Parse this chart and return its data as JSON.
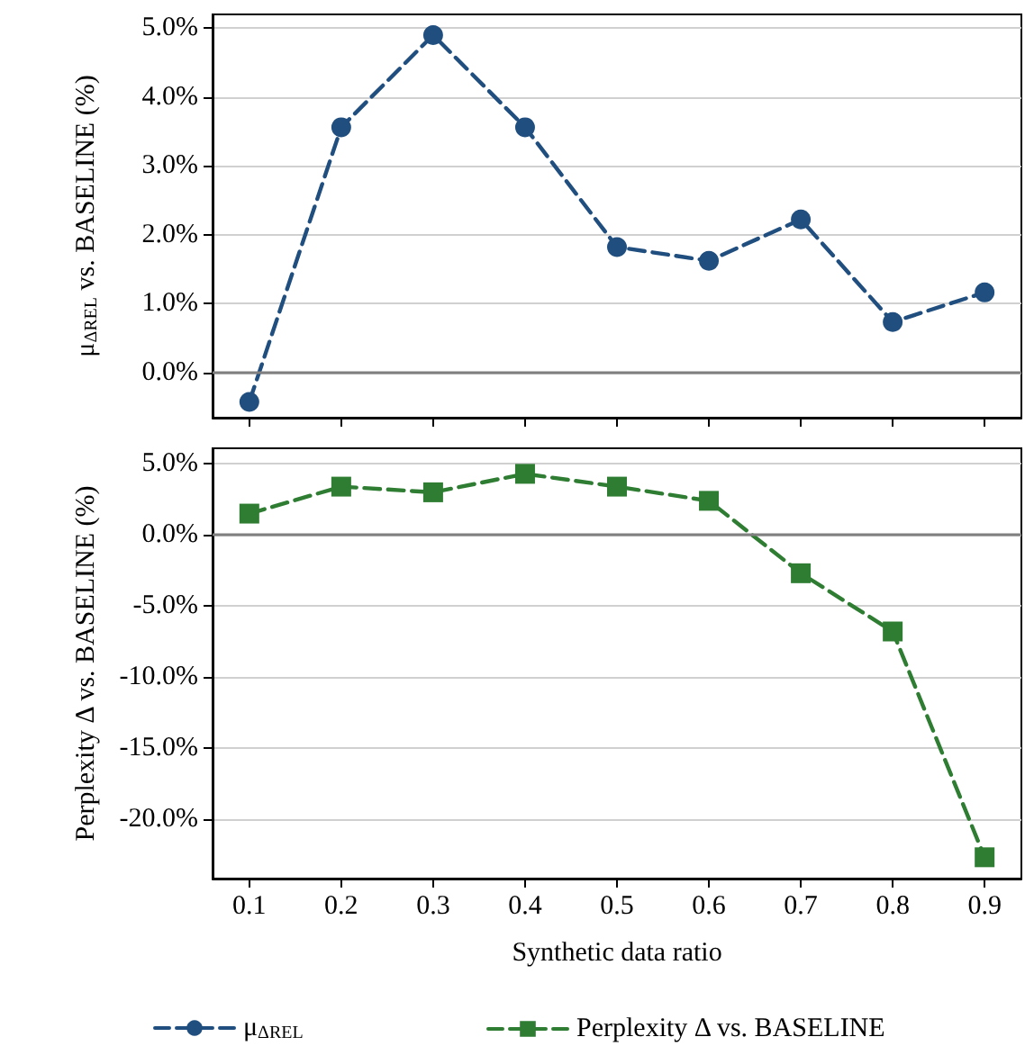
{
  "chart_data": [
    {
      "type": "line",
      "ylabel": "μ$_{ΔREL}$ vs. BASELINE (%)",
      "x": [
        0.1,
        0.2,
        0.3,
        0.4,
        0.5,
        0.6,
        0.7,
        0.8,
        0.9
      ],
      "series": [
        {
          "name": "μ$_{ΔREL}$",
          "color": "#1f4e7f",
          "values": [
            -0.43,
            3.56,
            4.9,
            3.56,
            1.82,
            1.62,
            2.22,
            0.73,
            1.16
          ]
        }
      ],
      "xlim": [
        0.06,
        0.94
      ],
      "xticks": [
        0.1,
        0.2,
        0.3,
        0.4,
        0.5,
        0.6,
        0.7,
        0.8,
        0.9
      ],
      "ylim": [
        -0.66,
        5.2
      ],
      "yticks": [
        {
          "value": 0,
          "label": "0.0%"
        },
        {
          "value": 1,
          "label": "1.0%"
        },
        {
          "value": 2,
          "label": "2.0%"
        },
        {
          "value": 3,
          "label": "3.0%"
        },
        {
          "value": 4,
          "label": "4.0%"
        },
        {
          "value": 5,
          "label": "5.0%"
        }
      ],
      "ref_lines": [
        {
          "axis": "y",
          "value": 0,
          "color": "#808080"
        }
      ],
      "grid": "y",
      "tick_labels": "y",
      "marker": "circle",
      "line_style": "dashed",
      "legend": "bottom"
    },
    {
      "type": "line",
      "xlabel": "Synthetic data ratio",
      "ylabel": "Perplexity Δ vs. BASELINE (%)",
      "x": [
        0.1,
        0.2,
        0.3,
        0.4,
        0.5,
        0.6,
        0.7,
        0.8,
        0.9
      ],
      "series": [
        {
          "name": "Perplexity Δ vs. BASELINE",
          "color": "#2e7d32",
          "values": [
            1.5,
            3.4,
            3.0,
            4.3,
            3.4,
            2.4,
            -2.7,
            -6.8,
            -22.7
          ]
        }
      ],
      "xlim": [
        0.06,
        0.94
      ],
      "xticks": [
        0.1,
        0.2,
        0.3,
        0.4,
        0.5,
        0.6,
        0.7,
        0.8,
        0.9
      ],
      "ylim": [
        -24.2,
        6.1
      ],
      "yticks": [
        {
          "value": -20,
          "label": "-20.0%"
        },
        {
          "value": -15,
          "label": "-15.0%"
        },
        {
          "value": -10,
          "label": "-10.0%"
        },
        {
          "value": -5,
          "label": "-5.0%"
        },
        {
          "value": 0,
          "label": "0.0%"
        },
        {
          "value": 5,
          "label": "5.0%"
        }
      ],
      "ref_lines": [
        {
          "axis": "y",
          "value": 0,
          "color": "#808080"
        }
      ],
      "grid": "y",
      "marker": "square",
      "line_style": "dashed",
      "legend": "bottom"
    }
  ]
}
